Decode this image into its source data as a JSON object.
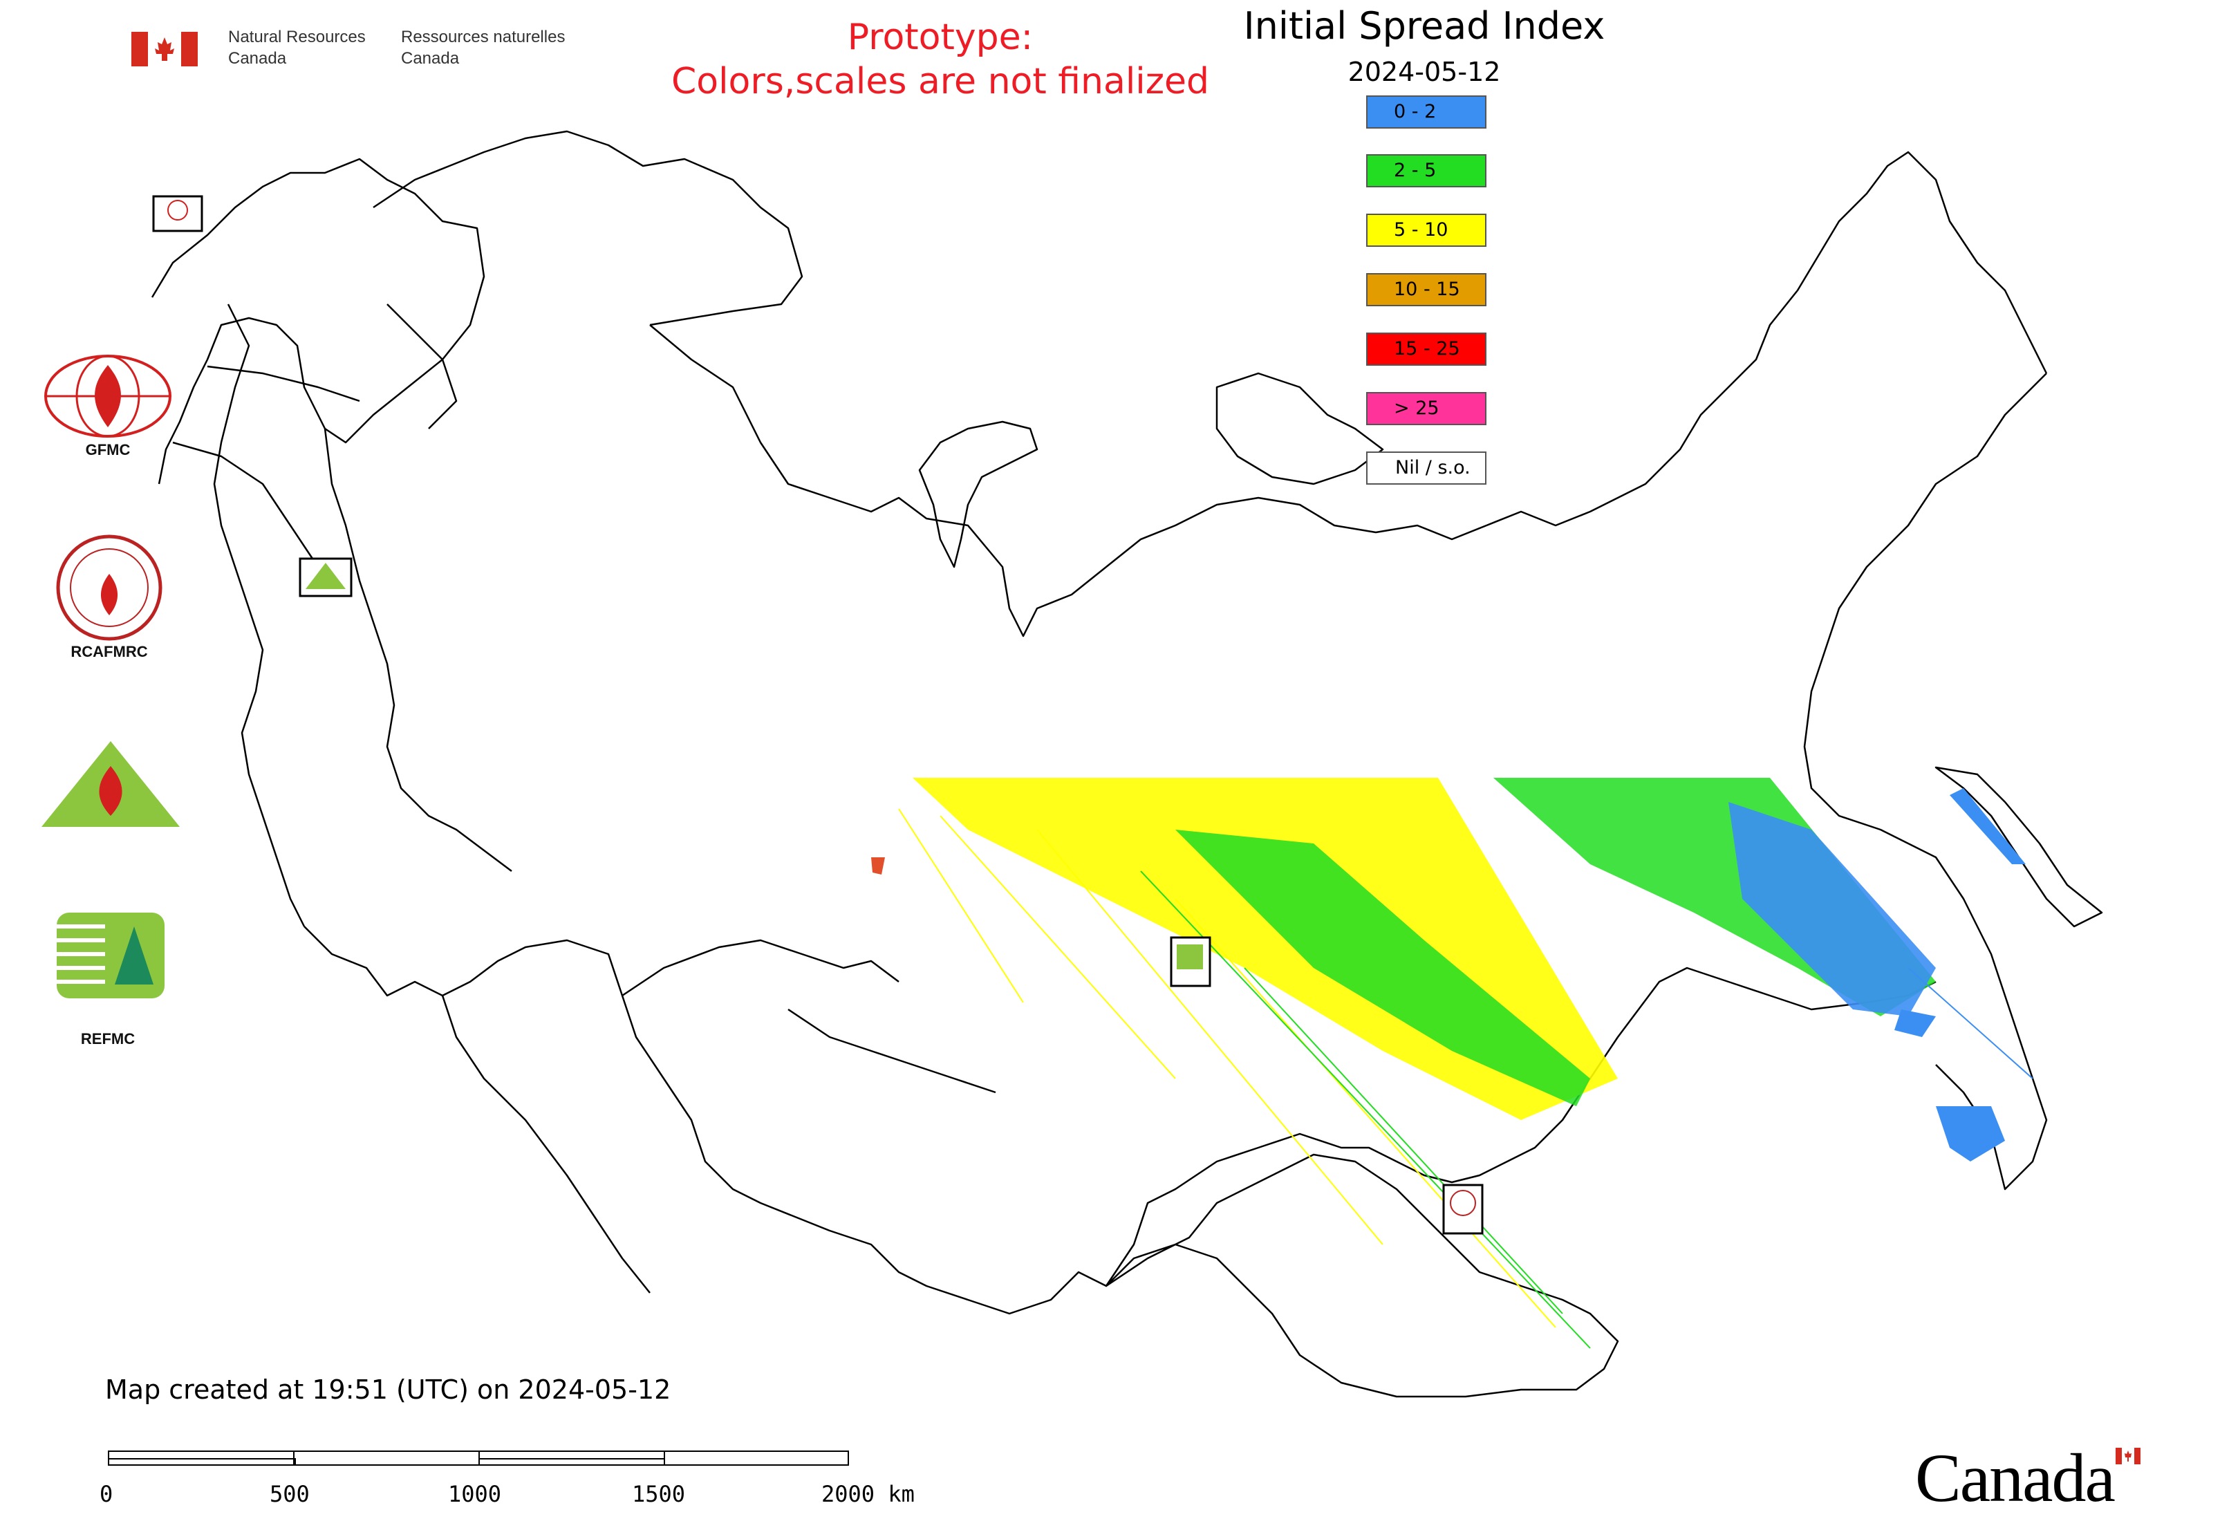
{
  "header": {
    "org_en_line1": "Natural Resources",
    "org_en_line2": "Canada",
    "org_fr_line1": "Ressources naturelles",
    "org_fr_line2": "Canada"
  },
  "prototype_notice": {
    "line1": "Prototype:",
    "line2": "Colors,scales are not finalized",
    "color": "#ee1c25"
  },
  "map": {
    "title": "Initial Spread Index",
    "date": "2024-05-12",
    "created_note": "Map created at 19:51 (UTC) on 2024-05-12"
  },
  "legend": [
    {
      "label": "0 - 2",
      "color": "#3b8ff3"
    },
    {
      "label": "2 - 5",
      "color": "#22dd22"
    },
    {
      "label": "5 - 10",
      "color": "#ffff00"
    },
    {
      "label": "10 - 15",
      "color": "#e29c00"
    },
    {
      "label": "15 - 25",
      "color": "#ff0000"
    },
    {
      "label": "> 25",
      "color": "#ff3399"
    },
    {
      "label": "Nil / s.o.",
      "color": "#ffffff"
    }
  ],
  "logos": [
    {
      "name": "GFMC",
      "caption": "GFMC",
      "icon": "gfmc-globe-flame-logo"
    },
    {
      "name": "RCAFMRC",
      "caption": "RCAFMRC",
      "icon": "rcafmrc-seal-logo"
    },
    {
      "name": "REEFMC",
      "caption": "",
      "icon": "reefmc-triangle-logo"
    },
    {
      "name": "REFMC",
      "caption": "REFMC",
      "icon": "refmc-sigma-logo"
    }
  ],
  "scale_bar": {
    "ticks": [
      "0",
      "500",
      "1000",
      "1500",
      "2000 km"
    ]
  },
  "footer": {
    "wordmark": "Canada"
  }
}
